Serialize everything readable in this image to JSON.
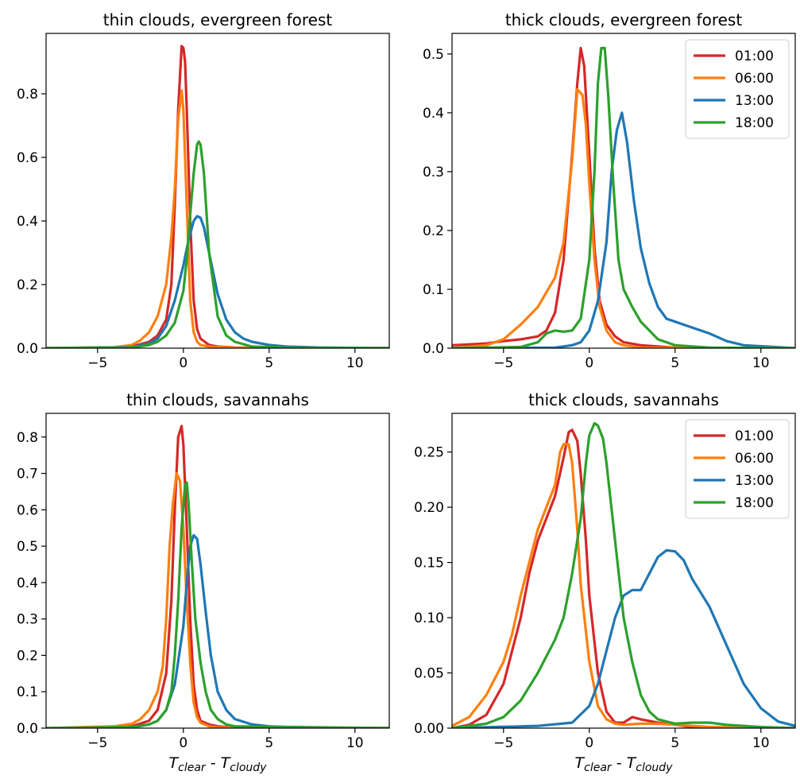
{
  "colors": {
    "01:00": "#d62728",
    "06:00": "#ff7f0e",
    "13:00": "#1f77b4",
    "18:00": "#2ca02c"
  },
  "chart_data": [
    {
      "type": "line",
      "title": "thin clouds, evergreen forest",
      "xlabel": "",
      "ylabel": "",
      "xlim": [
        -8,
        12
      ],
      "ylim": [
        0,
        0.99
      ],
      "xticks": [
        -5,
        0,
        5,
        10
      ],
      "xtick_labels": [
        "−5",
        "0",
        "5",
        "10"
      ],
      "yticks": [
        0.0,
        0.2,
        0.4,
        0.6,
        0.8
      ],
      "ytick_labels": [
        "0.0",
        "0.2",
        "0.4",
        "0.6",
        "0.8"
      ],
      "legend": null,
      "grid": false,
      "series": [
        {
          "name": "01:00",
          "x": [
            -8,
            -4,
            -3,
            -2,
            -1.5,
            -1,
            -0.7,
            -0.5,
            -0.3,
            -0.1,
            0,
            0.1,
            0.2,
            0.4,
            0.6,
            0.8,
            1,
            1.5,
            2,
            3,
            5,
            12
          ],
          "y": [
            0,
            0.002,
            0.005,
            0.02,
            0.04,
            0.09,
            0.2,
            0.45,
            0.75,
            0.95,
            0.945,
            0.9,
            0.75,
            0.4,
            0.15,
            0.06,
            0.03,
            0.01,
            0.005,
            0.002,
            0.001,
            0
          ]
        },
        {
          "name": "06:00",
          "x": [
            -8,
            -4,
            -3,
            -2.5,
            -2,
            -1.5,
            -1,
            -0.7,
            -0.5,
            -0.3,
            -0.1,
            0,
            0.2,
            0.4,
            0.6,
            0.8,
            1,
            1.5,
            3,
            12
          ],
          "y": [
            0,
            0.003,
            0.01,
            0.025,
            0.05,
            0.1,
            0.2,
            0.35,
            0.5,
            0.72,
            0.81,
            0.75,
            0.45,
            0.15,
            0.05,
            0.02,
            0.01,
            0.005,
            0.001,
            0
          ]
        },
        {
          "name": "13:00",
          "x": [
            -8,
            -3,
            -2,
            -1.5,
            -1,
            -0.5,
            0,
            0.3,
            0.6,
            0.8,
            1,
            1.2,
            1.5,
            2,
            2.5,
            3,
            3.5,
            4,
            5,
            6,
            8,
            12
          ],
          "y": [
            0,
            0.003,
            0.015,
            0.03,
            0.07,
            0.15,
            0.26,
            0.34,
            0.4,
            0.415,
            0.41,
            0.38,
            0.3,
            0.17,
            0.09,
            0.05,
            0.03,
            0.02,
            0.01,
            0.005,
            0.002,
            0
          ]
        },
        {
          "name": "18:00",
          "x": [
            -8,
            -3,
            -2,
            -1.5,
            -1,
            -0.5,
            0,
            0.2,
            0.4,
            0.6,
            0.8,
            0.9,
            1,
            1.2,
            1.5,
            2,
            2.5,
            3,
            4,
            6,
            12
          ],
          "y": [
            0,
            0.002,
            0.01,
            0.02,
            0.04,
            0.08,
            0.18,
            0.28,
            0.42,
            0.55,
            0.64,
            0.65,
            0.64,
            0.55,
            0.3,
            0.1,
            0.04,
            0.02,
            0.005,
            0.001,
            0
          ]
        }
      ]
    },
    {
      "type": "line",
      "title": "thick clouds, evergreen forest",
      "xlabel": "",
      "ylabel": "",
      "xlim": [
        -8,
        12
      ],
      "ylim": [
        0,
        0.535
      ],
      "xticks": [
        -5,
        0,
        5,
        10
      ],
      "xtick_labels": [
        "−5",
        "0",
        "5",
        "10"
      ],
      "yticks": [
        0.0,
        0.1,
        0.2,
        0.3,
        0.4,
        0.5
      ],
      "ytick_labels": [
        "0.0",
        "0.1",
        "0.2",
        "0.3",
        "0.4",
        "0.5"
      ],
      "legend": "top-right",
      "grid": false,
      "series": [
        {
          "name": "01:00",
          "x": [
            -8,
            -6,
            -5,
            -4,
            -3,
            -2.5,
            -2,
            -1.5,
            -1,
            -0.7,
            -0.5,
            -0.3,
            0,
            0.3,
            0.6,
            1,
            1.5,
            2,
            3,
            5,
            12
          ],
          "y": [
            0.005,
            0.008,
            0.012,
            0.015,
            0.02,
            0.03,
            0.06,
            0.15,
            0.33,
            0.45,
            0.51,
            0.48,
            0.33,
            0.17,
            0.08,
            0.04,
            0.02,
            0.01,
            0.005,
            0.001,
            0
          ]
        },
        {
          "name": "06:00",
          "x": [
            -8,
            -6,
            -5,
            -4,
            -3,
            -2,
            -1.5,
            -1,
            -0.7,
            -0.4,
            -0.2,
            0,
            0.3,
            0.6,
            1,
            1.5,
            2,
            3,
            12
          ],
          "y": [
            0,
            0.005,
            0.015,
            0.04,
            0.07,
            0.12,
            0.18,
            0.32,
            0.44,
            0.43,
            0.38,
            0.28,
            0.15,
            0.07,
            0.03,
            0.01,
            0.005,
            0.001,
            0
          ]
        },
        {
          "name": "13:00",
          "x": [
            -8,
            -2,
            -1,
            -0.5,
            0,
            0.5,
            1,
            1.3,
            1.6,
            1.9,
            2.2,
            2.6,
            3,
            3.5,
            4,
            4.5,
            5,
            6,
            7,
            8,
            9,
            12
          ],
          "y": [
            0,
            0.001,
            0.005,
            0.01,
            0.03,
            0.08,
            0.18,
            0.3,
            0.37,
            0.4,
            0.35,
            0.25,
            0.17,
            0.11,
            0.07,
            0.05,
            0.045,
            0.035,
            0.025,
            0.012,
            0.005,
            0
          ]
        },
        {
          "name": "18:00",
          "x": [
            -8,
            -4,
            -3,
            -2.5,
            -2,
            -1.5,
            -1,
            -0.5,
            0,
            0.3,
            0.5,
            0.7,
            0.9,
            1.1,
            1.4,
            1.7,
            2,
            2.5,
            3,
            4,
            5,
            7,
            12
          ],
          "y": [
            0,
            0.002,
            0.01,
            0.025,
            0.03,
            0.028,
            0.03,
            0.05,
            0.15,
            0.3,
            0.45,
            0.51,
            0.51,
            0.43,
            0.28,
            0.15,
            0.1,
            0.07,
            0.045,
            0.015,
            0.005,
            0.001,
            0
          ]
        }
      ]
    },
    {
      "type": "line",
      "title": "thin clouds, savannahs",
      "xlabel": "T_clear - T_cloudy",
      "ylabel": "",
      "xlim": [
        -8,
        12
      ],
      "ylim": [
        0,
        0.865
      ],
      "xticks": [
        -5,
        0,
        5,
        10
      ],
      "xtick_labels": [
        "−5",
        "0",
        "5",
        "10"
      ],
      "yticks": [
        0.0,
        0.1,
        0.2,
        0.3,
        0.4,
        0.5,
        0.6,
        0.7,
        0.8
      ],
      "ytick_labels": [
        "0.0",
        "0.1",
        "0.2",
        "0.3",
        "0.4",
        "0.5",
        "0.6",
        "0.7",
        "0.8"
      ],
      "legend": null,
      "grid": false,
      "series": [
        {
          "name": "01:00",
          "x": [
            -6,
            -4,
            -3,
            -2,
            -1.5,
            -1,
            -0.7,
            -0.5,
            -0.3,
            -0.1,
            0,
            0.2,
            0.4,
            0.6,
            0.8,
            1,
            1.5,
            2,
            3,
            12
          ],
          "y": [
            0,
            0.002,
            0.005,
            0.02,
            0.05,
            0.15,
            0.35,
            0.6,
            0.8,
            0.83,
            0.78,
            0.55,
            0.3,
            0.12,
            0.05,
            0.02,
            0.01,
            0.005,
            0.001,
            0
          ]
        },
        {
          "name": "06:00",
          "x": [
            -8,
            -4,
            -3,
            -2.5,
            -2,
            -1.5,
            -1.2,
            -1,
            -0.8,
            -0.6,
            -0.4,
            -0.2,
            0,
            0.2,
            0.4,
            0.6,
            0.8,
            1,
            1.5,
            2,
            12
          ],
          "y": [
            0,
            0.005,
            0.012,
            0.025,
            0.05,
            0.1,
            0.17,
            0.3,
            0.5,
            0.62,
            0.7,
            0.68,
            0.55,
            0.35,
            0.18,
            0.07,
            0.03,
            0.015,
            0.005,
            0.002,
            0
          ]
        },
        {
          "name": "13:00",
          "x": [
            -8,
            -3,
            -2,
            -1.5,
            -1,
            -0.5,
            0,
            0.2,
            0.4,
            0.6,
            0.8,
            1,
            1.3,
            1.6,
            2,
            2.5,
            3,
            4,
            5,
            7,
            12
          ],
          "y": [
            0,
            0.002,
            0.01,
            0.02,
            0.05,
            0.12,
            0.28,
            0.4,
            0.5,
            0.53,
            0.52,
            0.45,
            0.32,
            0.2,
            0.1,
            0.05,
            0.025,
            0.01,
            0.005,
            0.001,
            0
          ]
        },
        {
          "name": "18:00",
          "x": [
            -8,
            -3,
            -2,
            -1.5,
            -1,
            -0.7,
            -0.5,
            -0.3,
            -0.1,
            0.1,
            0.2,
            0.3,
            0.5,
            0.7,
            1,
            1.3,
            1.6,
            2,
            2.5,
            3,
            12
          ],
          "y": [
            0,
            0.003,
            0.01,
            0.02,
            0.05,
            0.1,
            0.2,
            0.35,
            0.55,
            0.67,
            0.675,
            0.62,
            0.45,
            0.3,
            0.18,
            0.1,
            0.05,
            0.025,
            0.01,
            0.005,
            0
          ]
        }
      ]
    },
    {
      "type": "line",
      "title": "thick clouds, savannahs",
      "xlabel": "T_clear - T_cloudy",
      "ylabel": "",
      "xlim": [
        -8,
        12
      ],
      "ylim": [
        0,
        0.285
      ],
      "xticks": [
        -5,
        0,
        5,
        10
      ],
      "xtick_labels": [
        "−5",
        "0",
        "5",
        "10"
      ],
      "yticks": [
        0.0,
        0.05,
        0.1,
        0.15,
        0.2,
        0.25
      ],
      "ytick_labels": [
        "0.00",
        "0.05",
        "0.10",
        "0.15",
        "0.20",
        "0.25"
      ],
      "legend": "top-right",
      "grid": false,
      "series": [
        {
          "name": "01:00",
          "x": [
            -8,
            -7,
            -6,
            -5,
            -4,
            -3.5,
            -3,
            -2.5,
            -2,
            -1.5,
            -1.2,
            -1,
            -0.7,
            -0.5,
            -0.2,
            0,
            0.5,
            1,
            1.5,
            2,
            2.5,
            3,
            4,
            5,
            6,
            12
          ],
          "y": [
            0,
            0.003,
            0.012,
            0.04,
            0.1,
            0.14,
            0.17,
            0.19,
            0.21,
            0.245,
            0.268,
            0.27,
            0.26,
            0.23,
            0.17,
            0.12,
            0.05,
            0.015,
            0.005,
            0.005,
            0.01,
            0.008,
            0.005,
            0.003,
            0.001,
            0
          ]
        },
        {
          "name": "06:00",
          "x": [
            -8,
            -7,
            -6,
            -5,
            -4.5,
            -4,
            -3.5,
            -3,
            -2.5,
            -2,
            -1.7,
            -1.5,
            -1.2,
            -1,
            -0.7,
            -0.5,
            0,
            0.5,
            1,
            1.5,
            2,
            3,
            4,
            5,
            6,
            7,
            12
          ],
          "y": [
            0.002,
            0.01,
            0.03,
            0.06,
            0.085,
            0.12,
            0.15,
            0.18,
            0.2,
            0.22,
            0.25,
            0.257,
            0.257,
            0.24,
            0.18,
            0.13,
            0.06,
            0.02,
            0.008,
            0.004,
            0.003,
            0.004,
            0.004,
            0.003,
            0.002,
            0.001,
            0
          ]
        },
        {
          "name": "13:00",
          "x": [
            -8,
            -3,
            -1,
            0,
            0.5,
            1,
            1.5,
            2,
            2.5,
            3,
            3.5,
            4,
            4.5,
            5,
            5.5,
            6,
            7,
            8,
            9,
            10,
            11,
            12
          ],
          "y": [
            0,
            0.002,
            0.005,
            0.02,
            0.04,
            0.07,
            0.1,
            0.12,
            0.125,
            0.125,
            0.14,
            0.155,
            0.161,
            0.16,
            0.152,
            0.135,
            0.11,
            0.075,
            0.04,
            0.018,
            0.006,
            0.002
          ]
        },
        {
          "name": "18:00",
          "x": [
            -8,
            -6,
            -5,
            -4,
            -3,
            -2,
            -1.5,
            -1,
            -0.5,
            -0.2,
            0,
            0.3,
            0.5,
            0.8,
            1,
            1.5,
            2,
            2.5,
            3,
            3.5,
            4,
            5,
            6,
            7,
            8,
            10,
            12
          ],
          "y": [
            0,
            0.004,
            0.01,
            0.025,
            0.05,
            0.08,
            0.1,
            0.14,
            0.19,
            0.24,
            0.265,
            0.276,
            0.274,
            0.262,
            0.24,
            0.17,
            0.1,
            0.06,
            0.03,
            0.015,
            0.008,
            0.004,
            0.005,
            0.005,
            0.003,
            0.001,
            0
          ]
        }
      ]
    }
  ],
  "legend_entries": [
    "01:00",
    "06:00",
    "13:00",
    "18:00"
  ]
}
